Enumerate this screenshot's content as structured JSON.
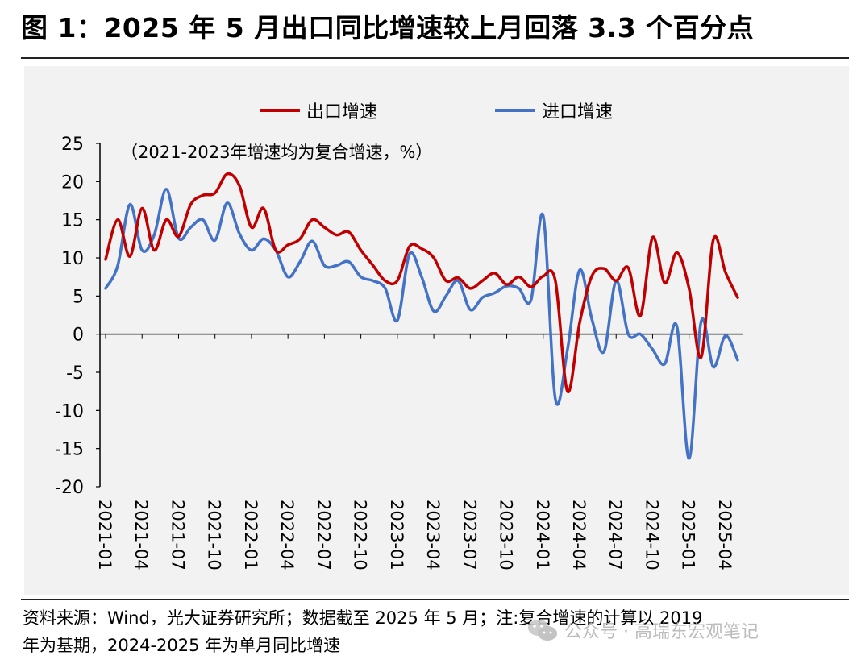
{
  "header": {
    "title": "图 1：2025 年 5 月出口同比增速较上月回落 3.3 个百分点"
  },
  "chart_data": {
    "type": "line",
    "annotation": "（2021-2023年增速均为复合增速，%）",
    "ylim": [
      -20,
      25
    ],
    "yticks": [
      25,
      20,
      15,
      10,
      5,
      0,
      -5,
      -10,
      -15,
      -20
    ],
    "xtick_labels": [
      "2021-01",
      "2021-04",
      "2021-07",
      "2021-10",
      "2022-01",
      "2022-04",
      "2022-07",
      "2022-10",
      "2023-01",
      "2023-04",
      "2023-07",
      "2023-10",
      "2024-01",
      "2024-04",
      "2024-07",
      "2024-10",
      "2025-01",
      "2025-04"
    ],
    "months": [
      "2021-01",
      "2021-02",
      "2021-03",
      "2021-04",
      "2021-05",
      "2021-06",
      "2021-07",
      "2021-08",
      "2021-09",
      "2021-10",
      "2021-11",
      "2021-12",
      "2022-01",
      "2022-02",
      "2022-03",
      "2022-04",
      "2022-05",
      "2022-06",
      "2022-07",
      "2022-08",
      "2022-09",
      "2022-10",
      "2022-11",
      "2022-12",
      "2023-01",
      "2023-02",
      "2023-03",
      "2023-04",
      "2023-05",
      "2023-06",
      "2023-07",
      "2023-08",
      "2023-09",
      "2023-10",
      "2023-11",
      "2023-12",
      "2024-01",
      "2024-02",
      "2024-03",
      "2024-04",
      "2024-05",
      "2024-06",
      "2024-07",
      "2024-08",
      "2024-09",
      "2024-10",
      "2024-11",
      "2024-12",
      "2025-01",
      "2025-02",
      "2025-03",
      "2025-04",
      "2025-05"
    ],
    "legend_position": "top",
    "series": [
      {
        "name": "出口增速",
        "color": "#c00000",
        "values": [
          9.8,
          15.0,
          10.2,
          16.5,
          11.0,
          15.0,
          12.8,
          17.0,
          18.2,
          18.5,
          21.0,
          19.5,
          14.0,
          16.5,
          11.0,
          11.7,
          12.5,
          15.0,
          14.0,
          13.0,
          13.4,
          11.0,
          9.0,
          7.0,
          7.0,
          11.5,
          11.2,
          10.0,
          7.0,
          7.4,
          6.0,
          7.0,
          8.0,
          6.5,
          7.5,
          6.2,
          7.6,
          7.0,
          -7.5,
          1.5,
          7.6,
          8.6,
          7.0,
          8.7,
          2.4,
          12.7,
          6.7,
          10.7,
          6.0,
          -3.0,
          12.4,
          8.1,
          4.8
        ]
      },
      {
        "name": "进口增速",
        "color": "#4472c4",
        "values": [
          6.0,
          9.0,
          17.0,
          11.0,
          13.0,
          19.0,
          12.6,
          14.0,
          15.0,
          12.3,
          17.2,
          13.2,
          11.0,
          12.5,
          11.0,
          7.5,
          9.5,
          12.2,
          9.0,
          9.0,
          9.5,
          7.5,
          7.0,
          6.0,
          1.8,
          10.5,
          7.5,
          3.0,
          5.0,
          7.0,
          3.2,
          4.8,
          5.4,
          6.3,
          6.0,
          4.5,
          15.5,
          -8.5,
          -2.0,
          8.4,
          2.0,
          -2.3,
          7.0,
          0.0,
          0.0,
          -2.0,
          -3.9,
          1.0,
          -16.3,
          1.7,
          -4.3,
          -0.2,
          -3.4
        ]
      }
    ]
  },
  "footer": {
    "source_line1": "资料来源：Wind，光大证券研究所；数据截至 2025 年 5 月；注:复合增速的计算以 2019",
    "source_line2": "年为基期，2024-2025 年为单月同比增速",
    "watermark": "公众号 · 高瑞东宏观笔记"
  }
}
